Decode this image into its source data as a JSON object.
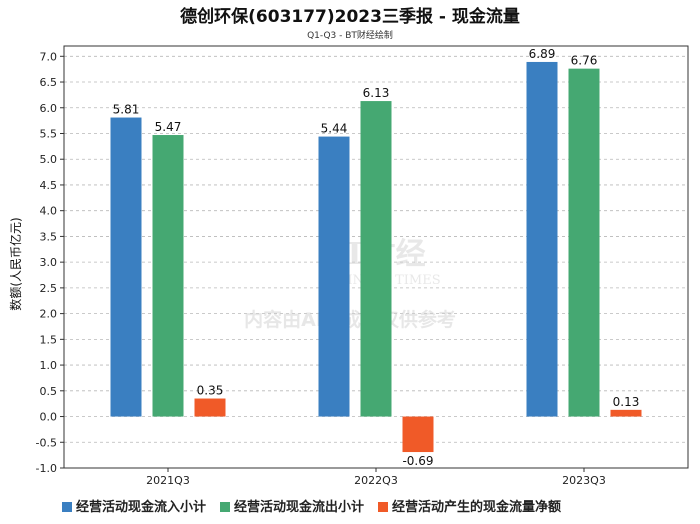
{
  "chart_data": {
    "type": "bar",
    "title": "德创环保(603177)2023三季报 - 现金流量",
    "subtitle": "Q1-Q3 - BT财经绘制",
    "ylabel": "数额(人民币亿元)",
    "xlabel": "",
    "ylim": [
      -1.0,
      7.2
    ],
    "yticks": [
      -1.0,
      -0.5,
      0.0,
      0.5,
      1.0,
      1.5,
      2.0,
      2.5,
      3.0,
      3.5,
      4.0,
      4.5,
      5.0,
      5.5,
      6.0,
      6.5,
      7.0
    ],
    "ytick_labels": [
      "-1.0",
      "-0.5",
      "0.0",
      "0.5",
      "1.0",
      "1.5",
      "2.0",
      "2.5",
      "3.0",
      "3.5",
      "4.0",
      "4.5",
      "5.0",
      "5.5",
      "6.0",
      "6.5",
      "7.0"
    ],
    "categories": [
      "2021Q3",
      "2022Q3",
      "2023Q3"
    ],
    "series": [
      {
        "name": "经营活动现金流入小计",
        "color": "#3a7fc1",
        "values": [
          5.81,
          5.44,
          6.89
        ],
        "labels": [
          "5.81",
          "5.44",
          "6.89"
        ]
      },
      {
        "name": "经营活动现金流出小计",
        "color": "#45a872",
        "values": [
          5.47,
          6.13,
          6.76
        ],
        "labels": [
          "5.47",
          "6.13",
          "6.76"
        ]
      },
      {
        "name": "经营活动产生的现金流量净额",
        "color": "#f05a28",
        "values": [
          0.35,
          -0.69,
          0.13
        ],
        "labels": [
          "0.35",
          "-0.69",
          "0.13"
        ]
      }
    ],
    "grid": true,
    "legend_position": "bottom",
    "watermark": {
      "brand": "BT财经",
      "brand_sub": "BUSINESS TIMES",
      "notice": "内容由AI生成，仅供参考"
    }
  }
}
